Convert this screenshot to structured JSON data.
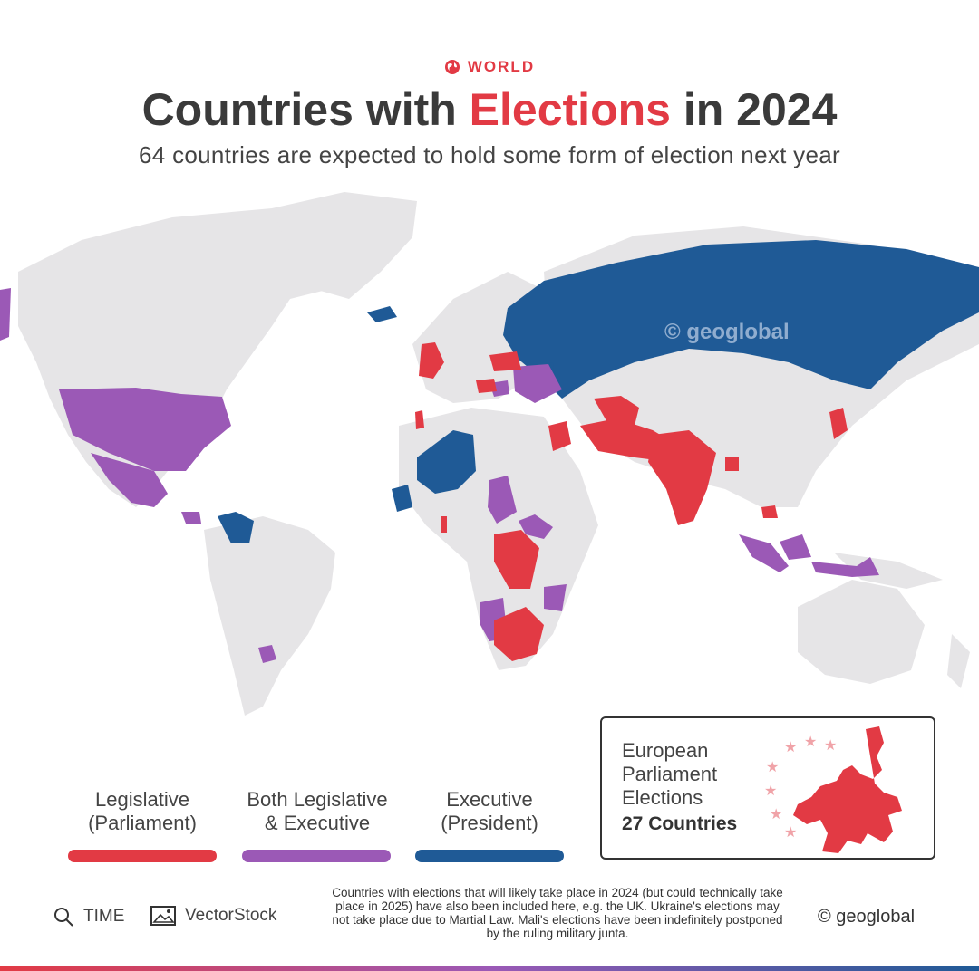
{
  "header": {
    "tag": "WORLD",
    "title_prefix": "Countries with ",
    "title_accent": "Elections",
    "title_suffix": " in 2024",
    "subtitle": "64 countries are expected to hold some form of election next year"
  },
  "map": {
    "watermark": "© geoglobal",
    "colors": {
      "land": "#e6e5e7",
      "legislative": "#e23a44",
      "both": "#9b59b6",
      "executive": "#1f5a96"
    }
  },
  "legend": [
    {
      "line1": "Legislative",
      "line2": "(Parliament)",
      "color": "#e23a44"
    },
    {
      "line1": "Both Legislative",
      "line2": "& Executive",
      "color": "#9b59b6"
    },
    {
      "line1": "Executive",
      "line2": "(President)",
      "color": "#1f5a96"
    }
  ],
  "eu_box": {
    "line1": "European",
    "line2": "Parliament",
    "line3": "Elections",
    "count": "27 Countries"
  },
  "footer": {
    "source1": "TIME",
    "source2": "VectorStock",
    "note": "Countries with elections that will likely take place in 2024 (but could technically take place in 2025) have also been included here, e.g. the UK. Ukraine's elections may not take place due to Martial Law. Mali's elections have been indefinitely postponed by the ruling military junta.",
    "credit": "© geoglobal"
  }
}
